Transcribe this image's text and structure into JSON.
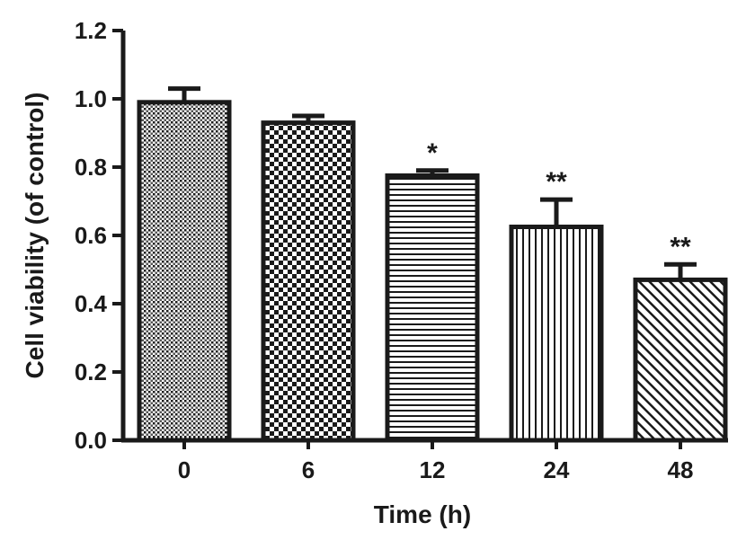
{
  "chart_data": {
    "type": "bar",
    "categories": [
      "0",
      "6",
      "12",
      "24",
      "48"
    ],
    "values": [
      0.99,
      0.93,
      0.775,
      0.625,
      0.47
    ],
    "errors": [
      0.04,
      0.02,
      0.015,
      0.08,
      0.045
    ],
    "annotations": [
      "",
      "",
      "*",
      "**",
      "**"
    ],
    "xlabel": "Time (h)",
    "ylabel": "Cell viability (of control)",
    "ylim": [
      0,
      1.2
    ],
    "yticks": [
      "0.0",
      "0.2",
      "0.4",
      "0.6",
      "0.8",
      "1.0",
      "1.2"
    ],
    "grid": false,
    "legend": "none",
    "patterns": [
      "fine-dots",
      "checkerboard",
      "horizontal-lines",
      "vertical-lines",
      "diagonal-lines"
    ],
    "colors": {
      "ink": "#1a1a1a",
      "background": "#ffffff"
    }
  }
}
